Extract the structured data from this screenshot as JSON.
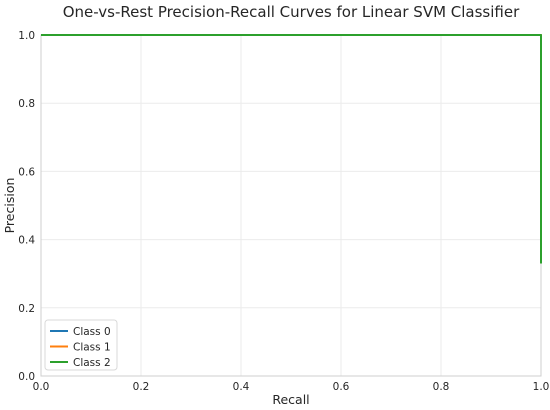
{
  "chart_data": {
    "type": "line",
    "title": "One-vs-Rest Precision-Recall Curves for Linear SVM Classifier",
    "xlabel": "Recall",
    "ylabel": "Precision",
    "xlim": [
      0.0,
      1.0
    ],
    "ylim": [
      0.0,
      1.0
    ],
    "xticks": [
      "0.0",
      "0.2",
      "0.4",
      "0.6",
      "0.8",
      "1.0"
    ],
    "yticks": [
      "0.0",
      "0.2",
      "0.4",
      "0.6",
      "0.8",
      "1.0"
    ],
    "grid": true,
    "legend_position": "lower-left",
    "series": [
      {
        "name": "Class 0",
        "color": "#1f77b4",
        "x": [
          0.0,
          1.0,
          1.0
        ],
        "y": [
          1.0,
          1.0,
          0.33
        ]
      },
      {
        "name": "Class 1",
        "color": "#ff7f0e",
        "x": [
          0.0,
          1.0,
          1.0
        ],
        "y": [
          1.0,
          1.0,
          0.33
        ]
      },
      {
        "name": "Class 2",
        "color": "#2ca02c",
        "x": [
          0.0,
          1.0,
          1.0
        ],
        "y": [
          1.0,
          1.0,
          0.33
        ]
      }
    ]
  }
}
